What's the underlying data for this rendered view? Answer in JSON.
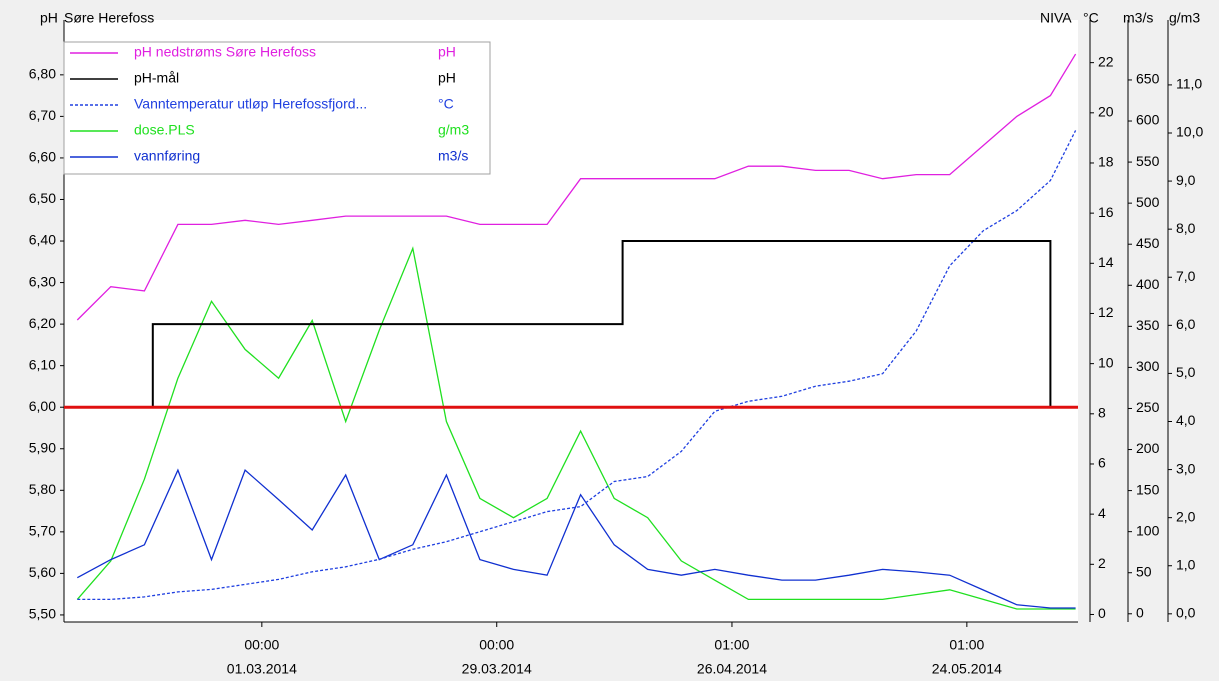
{
  "chart_data": {
    "type": "line",
    "title": "Søre Herefoss",
    "source": "NIVA",
    "ylabel": "pH",
    "y2label": "°C",
    "y3label": "m3/s",
    "y4label": "g/m3",
    "xlim": [
      "2014-02-05T10:00",
      "2014-06-06T07:00"
    ],
    "xticks": [
      {
        "value": "2014-03-01T00:00",
        "label": [
          "00:00",
          "01.03.2014"
        ]
      },
      {
        "value": "2014-03-29T00:00",
        "label": [
          "00:00",
          "29.03.2014"
        ]
      },
      {
        "value": "2014-04-26T01:00",
        "label": [
          "01:00",
          "26.04.2014"
        ]
      },
      {
        "value": "2014-05-24T01:00",
        "label": [
          "01:00",
          "24.05.2014"
        ]
      }
    ],
    "ylim": [
      5.483,
      6.932
    ],
    "yticks": [
      {
        "value": 5.5,
        "label": "5,50"
      },
      {
        "value": 5.6,
        "label": "5,60"
      },
      {
        "value": 5.7,
        "label": "5,70"
      },
      {
        "value": 5.8,
        "label": "5,80"
      },
      {
        "value": 5.9,
        "label": "5,90"
      },
      {
        "value": 6.0,
        "label": "6,00"
      },
      {
        "value": 6.1,
        "label": "6,10"
      },
      {
        "value": 6.2,
        "label": "6,20"
      },
      {
        "value": 6.3,
        "label": "6,30"
      },
      {
        "value": 6.4,
        "label": "6,40"
      },
      {
        "value": 6.5,
        "label": "6,50"
      },
      {
        "value": 6.6,
        "label": "6,60"
      },
      {
        "value": 6.7,
        "label": "6,70"
      },
      {
        "value": 6.8,
        "label": "6,80"
      }
    ],
    "y2lim": [
      -0.3,
      23.7
    ],
    "y2ticks": [
      0,
      2,
      4,
      6,
      8,
      10,
      12,
      14,
      16,
      18,
      20,
      22
    ],
    "y3lim": [
      -10,
      723
    ],
    "y3ticks": [
      0,
      50,
      100,
      150,
      200,
      250,
      300,
      350,
      400,
      450,
      500,
      550,
      600,
      650
    ],
    "y4lim": [
      -0.17,
      12.35
    ],
    "y4ticks": [
      {
        "value": 0,
        "label": "0,0"
      },
      {
        "value": 1,
        "label": "1,0"
      },
      {
        "value": 2,
        "label": "2,0"
      },
      {
        "value": 3,
        "label": "3,0"
      },
      {
        "value": 4,
        "label": "4,0"
      },
      {
        "value": 5,
        "label": "5,0"
      },
      {
        "value": 6,
        "label": "6,0"
      },
      {
        "value": 7,
        "label": "7,0"
      },
      {
        "value": 8,
        "label": "8,0"
      },
      {
        "value": 9,
        "label": "9,0"
      },
      {
        "value": 10,
        "label": "10,0"
      },
      {
        "value": 11,
        "label": "11,0"
      }
    ],
    "reference_line": {
      "value": 6.0,
      "color": "#e01010"
    },
    "x": [
      "2014-02-07",
      "2014-02-11",
      "2014-02-15",
      "2014-02-19",
      "2014-02-23",
      "2014-02-27",
      "2014-03-03",
      "2014-03-07",
      "2014-03-11",
      "2014-03-15",
      "2014-03-19",
      "2014-03-23",
      "2014-03-27",
      "2014-03-31",
      "2014-04-04",
      "2014-04-08",
      "2014-04-12",
      "2014-04-16",
      "2014-04-20",
      "2014-04-24",
      "2014-04-28",
      "2014-05-02",
      "2014-05-06",
      "2014-05-10",
      "2014-05-14",
      "2014-05-18",
      "2014-05-22",
      "2014-05-26",
      "2014-05-30",
      "2014-06-03",
      "2014-06-06"
    ],
    "series": [
      {
        "name": "pH nedstrøms Søre Herefoss",
        "unit": "pH",
        "color": "#e020e0",
        "axis": "y",
        "values": [
          6.21,
          6.29,
          6.28,
          6.44,
          6.44,
          6.45,
          6.44,
          6.45,
          6.46,
          6.46,
          6.46,
          6.46,
          6.44,
          6.44,
          6.44,
          6.55,
          6.55,
          6.55,
          6.55,
          6.55,
          6.58,
          6.58,
          6.57,
          6.57,
          6.55,
          6.56,
          6.56,
          6.63,
          6.7,
          6.75,
          6.85
        ]
      },
      {
        "name": "pH-mål",
        "unit": "pH",
        "color": "#000000",
        "axis": "y",
        "x": [
          "2014-02-05T10:00",
          "2014-02-16",
          "2014-02-16",
          "2014-04-13",
          "2014-04-13",
          "2014-06-03",
          "2014-06-03",
          "2014-06-06T07:00"
        ],
        "values": [
          6.0,
          6.0,
          6.2,
          6.2,
          6.4,
          6.4,
          6.0,
          6.0
        ]
      },
      {
        "name": "Vanntemperatur utløp Herefossfjord...",
        "unit": "°C",
        "color": "#2040e0",
        "axis": "y2",
        "dashed": true,
        "values": [
          0.6,
          0.6,
          0.7,
          0.9,
          1.0,
          1.2,
          1.4,
          1.7,
          1.9,
          2.2,
          2.6,
          2.9,
          3.3,
          3.7,
          4.1,
          4.3,
          5.3,
          5.5,
          6.5,
          8.1,
          8.5,
          8.7,
          9.1,
          9.3,
          9.6,
          11.3,
          13.9,
          15.3,
          16.1,
          17.3,
          19.3
        ]
      },
      {
        "name": "dose.PLS",
        "unit": "g/m3",
        "color": "#20e020",
        "axis": "y4",
        "values": [
          0.3,
          1.1,
          2.8,
          4.9,
          6.5,
          5.5,
          4.9,
          6.1,
          4.0,
          5.9,
          7.6,
          4.0,
          2.4,
          2.0,
          2.4,
          3.8,
          2.4,
          2.0,
          1.1,
          0.7,
          0.3,
          0.3,
          0.3,
          0.3,
          0.3,
          0.4,
          0.5,
          0.3,
          0.1,
          0.1,
          0.1
        ]
      },
      {
        "name": "vannføring",
        "unit": "m3/s",
        "color": "#1030d0",
        "axis": "y3",
        "values": [
          44,
          66,
          84,
          175,
          66,
          175,
          139,
          102,
          169,
          66,
          84,
          169,
          66,
          54,
          47,
          145,
          84,
          54,
          47,
          54,
          47,
          41,
          41,
          47,
          54,
          51,
          47,
          29,
          11,
          7,
          7
        ]
      }
    ]
  }
}
